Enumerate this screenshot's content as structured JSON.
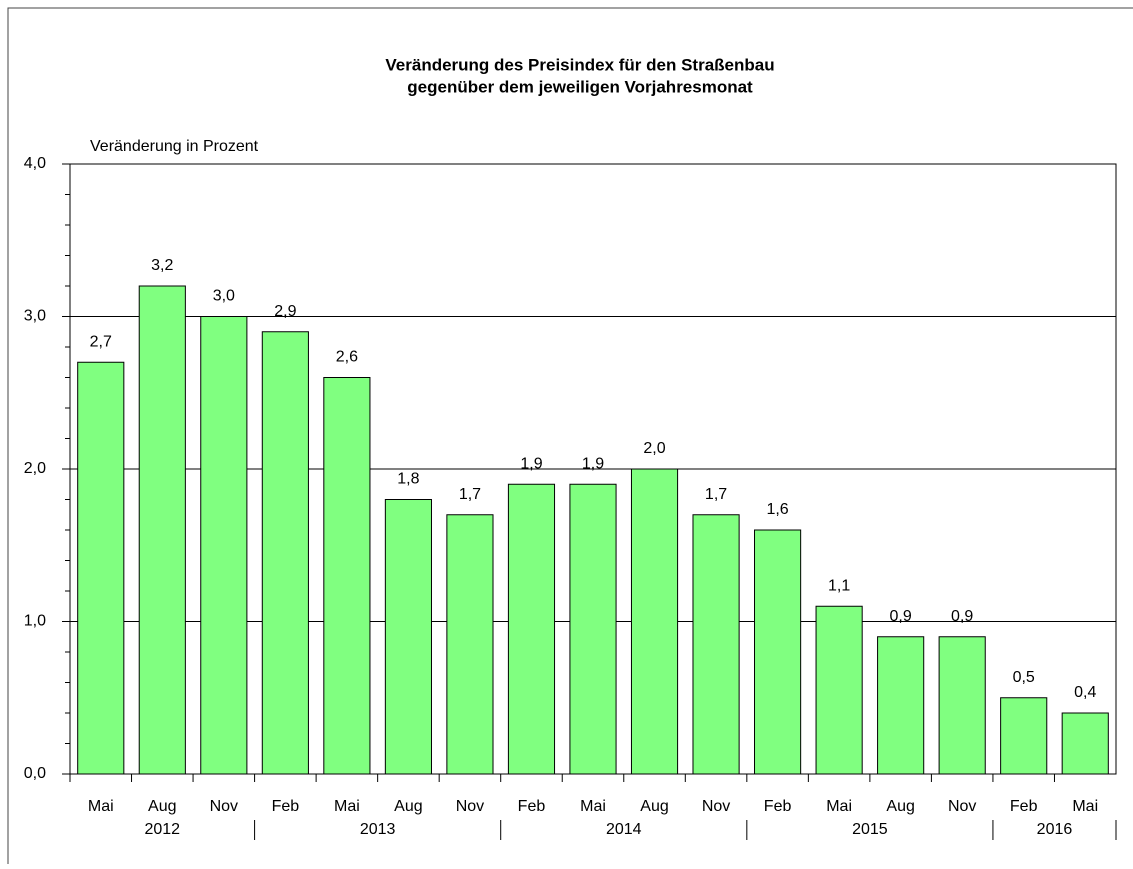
{
  "chart_data": {
    "type": "bar",
    "title": [
      "Veränderung des Preisindex für den Straßenbau",
      "gegenüber dem jeweiligen Vorjahresmonat"
    ],
    "y_label": "Veränderung in Prozent",
    "categories": [
      "Mai",
      "Aug",
      "Nov",
      "Feb",
      "Mai",
      "Aug",
      "Nov",
      "Feb",
      "Mai",
      "Aug",
      "Nov",
      "Feb",
      "Mai",
      "Aug",
      "Nov",
      "Feb",
      "Mai"
    ],
    "groups": [
      {
        "label": "2012",
        "count": 3
      },
      {
        "label": "2013",
        "count": 4
      },
      {
        "label": "2014",
        "count": 4
      },
      {
        "label": "2015",
        "count": 4
      },
      {
        "label": "2016",
        "count": 2
      }
    ],
    "values": [
      2.7,
      3.2,
      3.0,
      2.9,
      2.6,
      1.8,
      1.7,
      1.9,
      1.9,
      2.0,
      1.7,
      1.6,
      1.1,
      0.9,
      0.9,
      0.5,
      0.4
    ],
    "value_labels": [
      "2,7",
      "3,2",
      "3,0",
      "2,9",
      "2,6",
      "1,8",
      "1,7",
      "1,9",
      "1,9",
      "2,0",
      "1,7",
      "1,6",
      "1,1",
      "0,9",
      "0,9",
      "0,5",
      "0,4"
    ],
    "color": "#80ff80",
    "ylim": [
      0,
      4
    ],
    "yticks": [
      {
        "value": 0,
        "label": "0,0"
      },
      {
        "value": 1,
        "label": "1,0"
      },
      {
        "value": 2,
        "label": "2,0"
      },
      {
        "value": 3,
        "label": "3,0"
      },
      {
        "value": 4,
        "label": "4,0"
      }
    ],
    "yticks_minor": [
      0.2,
      0.4,
      0.6,
      0.8,
      1.2,
      1.4,
      1.6,
      1.8,
      2.2,
      2.4,
      2.6,
      2.8,
      3.2,
      3.4,
      3.6,
      3.8
    ],
    "grid": true
  }
}
